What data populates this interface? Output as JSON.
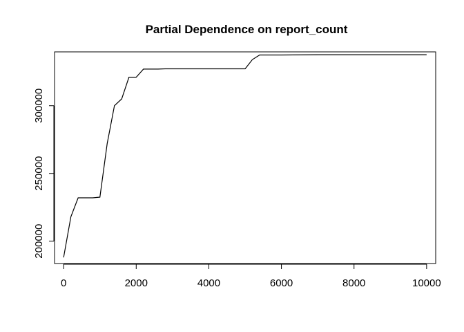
{
  "chart_data": {
    "type": "line",
    "title": "Partial Dependence on report_count",
    "xlabel": "",
    "ylabel": "",
    "xlim": [
      -250,
      10250
    ],
    "ylim": [
      183500,
      339700
    ],
    "x_ticks": [
      0,
      2000,
      4000,
      6000,
      8000,
      10000
    ],
    "x_tick_labels": [
      "0",
      "2000",
      "4000",
      "6000",
      "8000",
      "10000"
    ],
    "y_ticks": [
      200000,
      250000,
      300000
    ],
    "y_tick_labels": [
      "200000",
      "250000",
      "300000"
    ],
    "grid": false,
    "legend": "none",
    "series": [
      {
        "color": "#000000",
        "x": [
          0,
          200,
          400,
          600,
          800,
          1000,
          1200,
          1400,
          1600,
          1800,
          2000,
          2200,
          2400,
          2600,
          2800,
          3000,
          3500,
          4000,
          4500,
          5000,
          5200,
          5400,
          5600,
          6000,
          7000,
          8000,
          9000,
          10000
        ],
        "y": [
          188000,
          218000,
          232000,
          232000,
          232000,
          232500,
          272000,
          300000,
          305000,
          321000,
          321000,
          327000,
          327000,
          327000,
          327200,
          327200,
          327200,
          327200,
          327200,
          327200,
          334000,
          337400,
          337400,
          337400,
          337600,
          337600,
          337600,
          337600
        ]
      }
    ]
  }
}
